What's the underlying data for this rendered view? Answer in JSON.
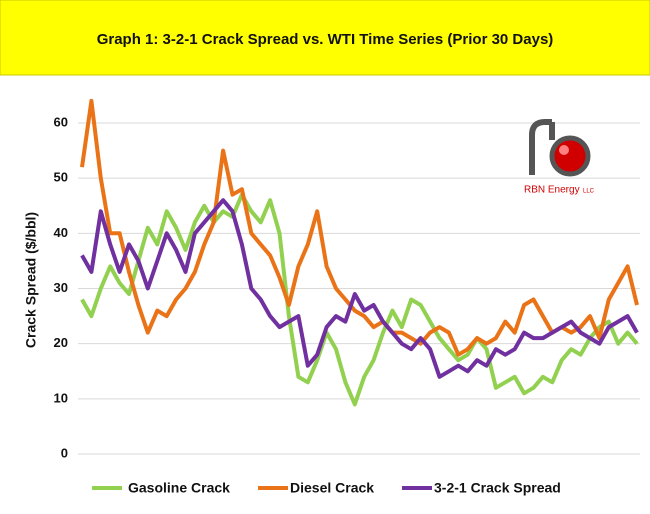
{
  "chart_data": {
    "type": "line",
    "title": "Graph 1: 3-2-1 Crack Spread vs. WTI Time Series (Prior 30 Days)",
    "y_label": "Crack Spread ($/bbl)",
    "ylim": [
      0,
      60
    ],
    "yticks": [
      0,
      10,
      20,
      30,
      40,
      50,
      60
    ],
    "grid": true,
    "legend": "bottom",
    "series": [
      {
        "name": "Gasoline Crack",
        "color": "#92d050",
        "values": [
          28,
          25,
          30,
          34,
          31,
          29,
          35,
          41,
          38,
          44,
          41,
          37,
          42,
          45,
          42,
          44,
          43,
          47,
          44,
          42,
          46,
          40,
          25,
          14,
          13,
          17,
          22,
          19,
          13,
          9,
          14,
          17,
          22,
          26,
          23,
          28,
          27,
          24,
          21,
          19,
          17,
          18,
          21,
          19,
          12,
          13,
          14,
          11,
          12,
          14,
          13,
          17,
          19,
          18,
          21,
          23,
          24,
          20,
          22,
          20
        ]
      },
      {
        "name": "Diesel Crack",
        "color": "#e97316",
        "values": [
          52,
          64,
          50,
          40,
          40,
          33,
          27,
          22,
          26,
          25,
          28,
          30,
          33,
          38,
          42,
          55,
          47,
          48,
          40,
          38,
          36,
          32,
          27,
          34,
          38,
          44,
          34,
          30,
          28,
          26,
          25,
          23,
          24,
          22,
          22,
          21,
          20,
          22,
          23,
          22,
          18,
          19,
          21,
          20,
          21,
          24,
          22,
          27,
          28,
          25,
          22,
          23,
          22,
          23,
          25,
          21,
          28,
          31,
          34,
          27
        ]
      },
      {
        "name": "3-2-1 Crack Spread",
        "color": "#7030a0",
        "values": [
          36,
          33,
          44,
          38,
          33,
          38,
          35,
          30,
          35,
          40,
          37,
          33,
          40,
          42,
          44,
          46,
          44,
          38,
          30,
          28,
          25,
          23,
          24,
          25,
          16,
          18,
          23,
          25,
          24,
          29,
          26,
          27,
          24,
          22,
          20,
          19,
          21,
          19,
          14,
          15,
          16,
          15,
          17,
          16,
          19,
          18,
          19,
          22,
          21,
          21,
          22,
          23,
          24,
          22,
          21,
          20,
          23,
          24,
          25,
          22
        ]
      }
    ]
  },
  "logo": {
    "name": "RBN Energy",
    "suffix": "LLC"
  }
}
